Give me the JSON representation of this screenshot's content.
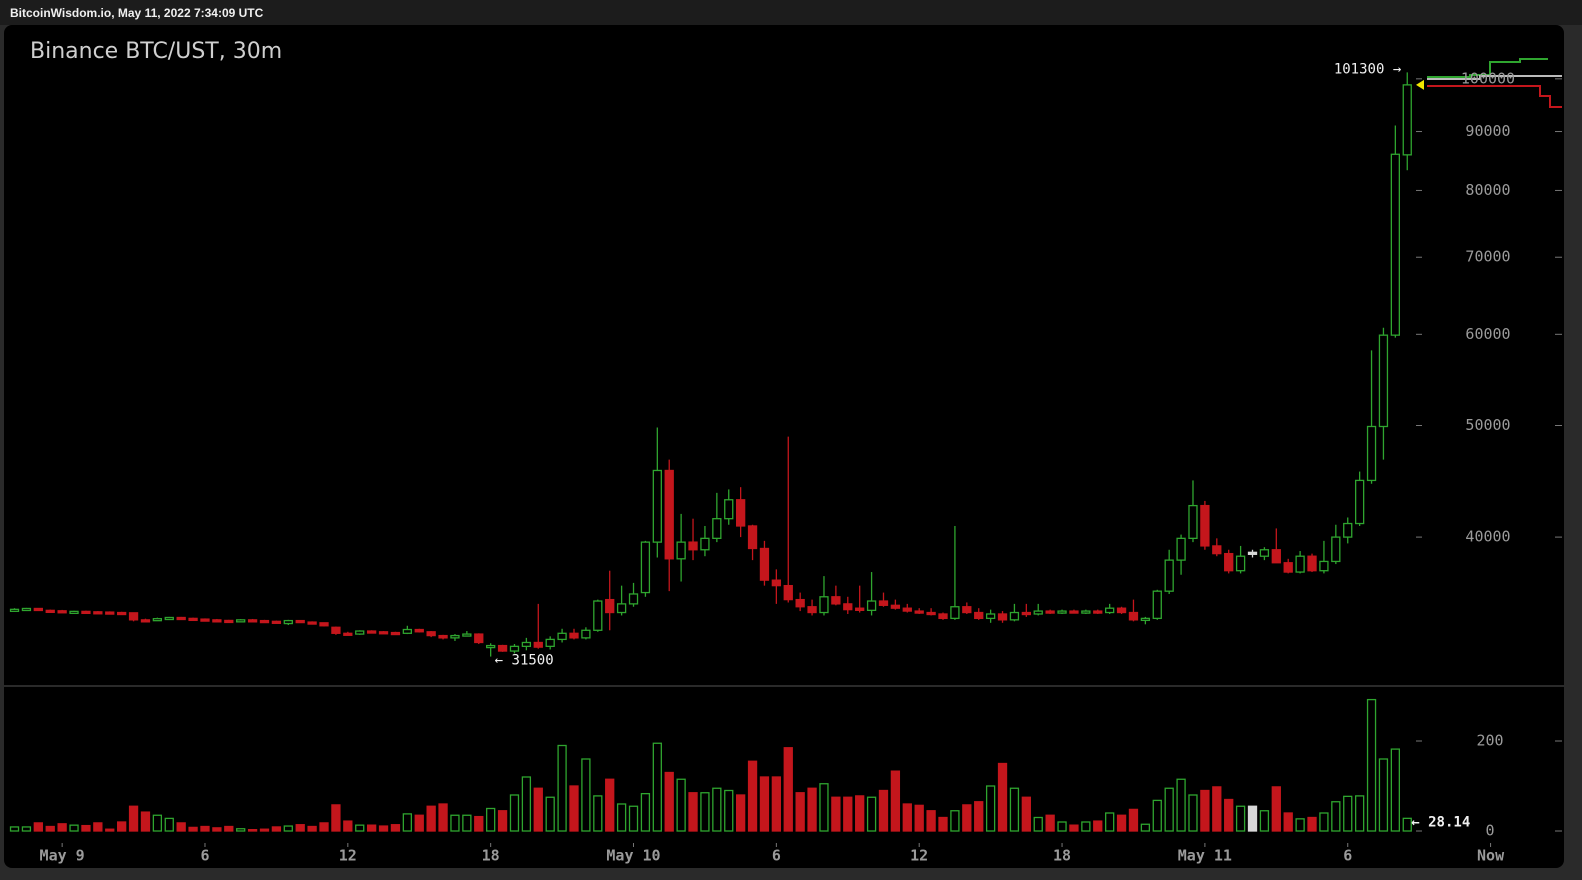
{
  "header": {
    "text": "BitcoinWisdom.io, May 11, 2022 7:34:09 UTC"
  },
  "chart_data": {
    "type": "candlestick",
    "title": "Binance BTC/UST, 30m",
    "x": [
      -2,
      -1.5,
      -1,
      -0.5,
      0,
      0.5,
      1,
      1.5,
      2,
      2.5,
      3,
      3.5,
      4,
      4.5,
      5,
      5.5,
      6,
      6.5,
      7,
      7.5,
      8,
      8.5,
      9,
      9.5,
      10,
      10.5,
      11,
      11.5,
      12,
      12.5,
      13,
      13.5,
      14,
      14.5,
      15,
      15.5,
      16,
      16.5,
      17,
      17.5,
      18,
      18.5,
      19,
      19.5,
      20,
      20.5,
      21,
      21.5,
      22,
      22.5,
      23,
      23.5,
      24,
      24.5,
      25,
      25.5,
      26,
      26.5,
      27,
      27.5,
      28,
      28.5,
      29,
      29.5,
      30,
      30.5,
      31,
      31.5,
      32,
      32.5,
      33,
      33.5,
      34,
      34.5,
      35,
      35.5,
      36,
      36.5,
      37,
      37.5,
      38,
      38.5,
      39,
      39.5,
      40,
      40.5,
      41,
      41.5,
      42,
      42.5,
      43,
      43.5,
      44,
      44.5,
      45,
      45.5,
      46,
      46.5,
      47,
      47.5,
      48,
      48.5,
      49,
      49.5,
      50,
      50.5,
      51,
      51.5,
      52,
      52.5,
      53,
      53.5,
      54,
      54.5,
      55,
      55.5,
      56,
      56.5
    ],
    "open": [
      34550,
      34620,
      34680,
      34550,
      34520,
      34470,
      34480,
      34450,
      34430,
      34400,
      34380,
      33900,
      33850,
      33980,
      34060,
      34000,
      33950,
      33900,
      33860,
      33850,
      33900,
      33850,
      33800,
      33650,
      33850,
      33750,
      33700,
      33400,
      33000,
      32950,
      33150,
      33100,
      33050,
      33000,
      33250,
      33100,
      32850,
      32700,
      32850,
      32950,
      32100,
      32200,
      31850,
      32150,
      32400,
      32150,
      32600,
      33000,
      32700,
      33200,
      35300,
      34400,
      35000,
      35800,
      39600,
      45700,
      38300,
      39600,
      39000,
      39900,
      41500,
      43100,
      40900,
      39100,
      36700,
      36300,
      35300,
      34800,
      34400,
      35500,
      35000,
      34700,
      34550,
      35200,
      34900,
      34700,
      34500,
      34400,
      34300,
      34000,
      34800,
      34400,
      34000,
      34300,
      33900,
      34400,
      34300,
      34500,
      34400,
      34500,
      34400,
      34500,
      34400,
      34700,
      34400,
      33900,
      34000,
      35900,
      38200,
      39900,
      42600,
      39300,
      38700,
      37400,
      38800,
      38500,
      39000,
      38000,
      37300,
      38500,
      37400,
      38100,
      40000,
      41100,
      44800,
      49900,
      59900,
      85900
    ],
    "high": [
      34700,
      34720,
      34700,
      34600,
      34580,
      34520,
      34530,
      34500,
      34480,
      34450,
      34400,
      33980,
      34050,
      34100,
      34100,
      34050,
      34000,
      33960,
      33900,
      33950,
      33960,
      33900,
      33850,
      33900,
      33880,
      33800,
      33720,
      33450,
      33100,
      33200,
      33200,
      33150,
      33100,
      33500,
      33300,
      33150,
      32900,
      32950,
      33150,
      33000,
      32350,
      32250,
      32300,
      32700,
      35000,
      32800,
      33300,
      33300,
      33400,
      35300,
      37400,
      36300,
      36500,
      39700,
      49800,
      46700,
      41900,
      41500,
      40900,
      43700,
      44000,
      44200,
      41000,
      39700,
      37500,
      48900,
      35800,
      35300,
      37000,
      36300,
      35500,
      36300,
      37300,
      35800,
      35300,
      35000,
      34700,
      34700,
      34400,
      40900,
      35100,
      34700,
      34600,
      34500,
      35000,
      35000,
      35000,
      34600,
      34600,
      34600,
      34600,
      34600,
      35000,
      34800,
      35300,
      34100,
      36000,
      39000,
      40200,
      44800,
      43000,
      39900,
      39000,
      39300,
      39000,
      39200,
      40700,
      38300,
      38900,
      38700,
      39700,
      41000,
      41600,
      45600,
      58100,
      60800,
      91100,
      101300
    ],
    "low": [
      34500,
      34580,
      34520,
      34480,
      34430,
      34400,
      34420,
      34380,
      34380,
      34340,
      33800,
      33780,
      33820,
      33900,
      33950,
      33900,
      33850,
      33820,
      33800,
      33800,
      33820,
      33750,
      33700,
      33550,
      33700,
      33650,
      33450,
      32900,
      32850,
      32900,
      33050,
      33000,
      32950,
      32950,
      33050,
      32750,
      32600,
      32500,
      32800,
      32300,
      31500,
      31800,
      31700,
      31900,
      32000,
      31950,
      32400,
      32600,
      32600,
      33100,
      33200,
      34200,
      34800,
      35500,
      38400,
      35900,
      36600,
      38200,
      38500,
      39600,
      41000,
      40000,
      38200,
      36300,
      35000,
      35100,
      34500,
      34200,
      34200,
      34900,
      34300,
      34400,
      34200,
      34800,
      34600,
      34400,
      34300,
      34200,
      33900,
      33900,
      34300,
      33900,
      33700,
      33700,
      33800,
      34100,
      34200,
      34300,
      34300,
      34350,
      34300,
      34300,
      34300,
      34300,
      33800,
      33600,
      33900,
      35700,
      37100,
      39600,
      39000,
      38500,
      37200,
      37200,
      38400,
      38200,
      38000,
      37200,
      37200,
      37300,
      37200,
      37900,
      39500,
      40900,
      44500,
      46700,
      59600,
      83300
    ],
    "close": [
      34620,
      34680,
      34550,
      34520,
      34470,
      34480,
      34450,
      34430,
      34400,
      34380,
      33900,
      33850,
      33980,
      34060,
      34000,
      33950,
      33900,
      33860,
      33850,
      33900,
      33850,
      33800,
      33750,
      33850,
      33750,
      33700,
      33500,
      33000,
      32950,
      33150,
      33100,
      33050,
      33000,
      33250,
      33100,
      32850,
      32700,
      32850,
      32950,
      32400,
      32200,
      31850,
      32150,
      32400,
      32100,
      32600,
      33000,
      32700,
      33200,
      35200,
      34400,
      35000,
      35700,
      39600,
      45700,
      38300,
      39600,
      39000,
      39900,
      41500,
      43100,
      40900,
      39100,
      36700,
      36300,
      35300,
      34800,
      34400,
      35500,
      35000,
      34600,
      34550,
      35200,
      34900,
      34700,
      34500,
      34400,
      34300,
      34000,
      34800,
      34400,
      34000,
      34300,
      33900,
      34400,
      34300,
      34500,
      34400,
      34500,
      34400,
      34500,
      34400,
      34700,
      34400,
      33900,
      34000,
      35900,
      38200,
      39900,
      42600,
      39300,
      38700,
      37400,
      38500,
      38800,
      39000,
      38000,
      37300,
      38500,
      37400,
      38100,
      40000,
      41100,
      44800,
      49900,
      59900,
      86000,
      98800
    ],
    "volume": [
      9,
      9,
      18,
      10,
      16,
      13,
      12,
      18,
      4,
      20,
      55,
      42,
      35,
      28,
      18,
      8,
      10,
      7,
      10,
      5,
      3,
      4,
      9,
      11,
      14,
      10,
      18,
      58,
      22,
      13,
      13,
      11,
      14,
      38,
      35,
      55,
      60,
      35,
      35,
      32,
      50,
      45,
      80,
      120,
      95,
      75,
      190,
      100,
      160,
      78,
      115,
      60,
      55,
      83,
      195,
      130,
      115,
      85,
      85,
      95,
      90,
      80,
      155,
      120,
      120,
      185,
      85,
      95,
      105,
      75,
      75,
      78,
      75,
      90,
      133,
      60,
      57,
      45,
      30,
      45,
      58,
      65,
      100,
      150,
      95,
      75,
      30,
      35,
      20,
      13,
      20,
      22,
      40,
      35,
      48,
      15,
      68,
      95,
      115,
      80,
      90,
      98,
      70,
      55,
      55,
      45,
      98,
      40,
      27,
      30,
      40,
      65,
      77,
      78,
      292,
      160,
      182,
      28.14
    ],
    "up_color": "#2fa52f",
    "down_color": "#c4161c",
    "doji_color": "#d8d8d8",
    "log_y": true,
    "xlim": [
      -2.4,
      63
    ],
    "xticks": [
      {
        "value": 0,
        "label": "May 9"
      },
      6,
      12,
      18,
      {
        "value": 24,
        "label": "May 10"
      },
      {
        "value": 30,
        "label": "6"
      },
      {
        "value": 36,
        "label": "12"
      },
      {
        "value": 42,
        "label": "18"
      },
      {
        "value": 48,
        "label": "May 11"
      },
      {
        "value": 54,
        "label": "6"
      },
      {
        "value": 60,
        "label": "Now"
      }
    ],
    "ylim": [
      29700,
      110700
    ],
    "yticks": [
      40000,
      50000,
      60000,
      70000,
      80000,
      90000,
      100000
    ],
    "volume_ylim": [
      0,
      320
    ],
    "volume_yticks": [
      0,
      200
    ],
    "annotations": [
      {
        "label": "101300 →",
        "value": 101300
      },
      {
        "label": "← 31500",
        "value": 31500
      },
      {
        "label": "← 28.14",
        "value": 28.14,
        "color": "#f2e600"
      }
    ],
    "current_marker_color": "#f2e600"
  }
}
